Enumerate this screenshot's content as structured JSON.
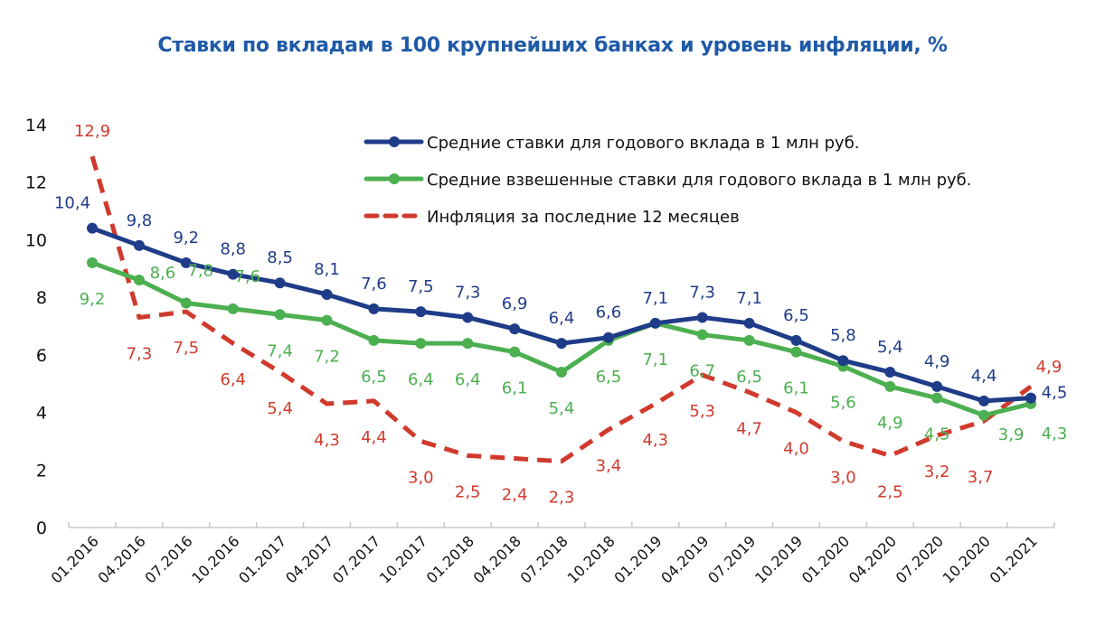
{
  "chart_data": {
    "type": "line",
    "title": "Ставки по вкладам в 100 крупнейших банках и уровень инфляции, %",
    "xlabel": "",
    "ylabel": "",
    "ylim": [
      0,
      14
    ],
    "yticks": [
      "0",
      "2",
      "4",
      "6",
      "8",
      "10",
      "12",
      "14"
    ],
    "grid": false,
    "legend_position": "top-right",
    "categories": [
      "01.2016",
      "04.2016",
      "07.2016",
      "10.2016",
      "01.2017",
      "04.2017",
      "07.2017",
      "10.2017",
      "01.2018",
      "04.2018",
      "07.2018",
      "10.2018",
      "01.2019",
      "04.2019",
      "07.2019",
      "10.2019",
      "01.2020",
      "04.2020",
      "07.2020",
      "10.2020",
      "01.2021"
    ],
    "series": [
      {
        "name": "Средние ставки для годового вклада в 1 млн руб.",
        "color": "#1f3c88",
        "style": "solid-markers",
        "values": [
          10.4,
          9.8,
          9.2,
          8.8,
          8.5,
          8.1,
          7.6,
          7.5,
          7.3,
          6.9,
          6.4,
          6.6,
          7.1,
          7.3,
          7.1,
          6.5,
          5.8,
          5.4,
          4.9,
          4.4,
          4.5
        ],
        "labels": [
          "10,4",
          "9,8",
          "9,2",
          "8,8",
          "8,5",
          "8,1",
          "7,6",
          "7,5",
          "7,3",
          "6,9",
          "6,4",
          "6,6",
          "7,1",
          "7,3",
          "7,1",
          "6,5",
          "5,8",
          "5,4",
          "4,9",
          "4,4",
          "4,5"
        ]
      },
      {
        "name": "Средние взвешенные ставки для годового вклада в 1 млн руб.",
        "color": "#4caf50",
        "style": "solid-markers",
        "values": [
          9.2,
          8.6,
          7.8,
          7.6,
          7.4,
          7.2,
          6.5,
          6.4,
          6.4,
          6.1,
          5.4,
          6.5,
          7.1,
          6.7,
          6.5,
          6.1,
          5.6,
          4.9,
          4.5,
          3.9,
          4.3
        ],
        "labels": [
          "9,2",
          "8,6",
          "7,8",
          "7,6",
          "7,4",
          "7,2",
          "6,5",
          "6,4",
          "6,4",
          "6,1",
          "5,4",
          "6,5",
          "7,1",
          "6,7",
          "6,5",
          "6,1",
          "5,6",
          "4,9",
          "4,5",
          "3,9",
          "4,3"
        ]
      },
      {
        "name": "Инфляция за последние 12 месяцев",
        "color": "#d03a2c",
        "style": "dashed",
        "values": [
          12.9,
          7.3,
          7.5,
          6.4,
          5.4,
          4.3,
          4.4,
          3.0,
          2.5,
          2.4,
          2.3,
          3.4,
          4.3,
          5.3,
          4.7,
          4.0,
          3.0,
          2.5,
          3.2,
          3.7,
          4.9
        ],
        "labels": [
          "12,9",
          "7,3",
          "7,5",
          "6,4",
          "5,4",
          "4,3",
          "4,4",
          "3,0",
          "2,5",
          "2,4",
          "2,3",
          "3,4",
          "4,3",
          "5,3",
          "4,7",
          "4,0",
          "3,0",
          "2,5",
          "3,2",
          "3,7",
          "4,9"
        ]
      }
    ]
  }
}
